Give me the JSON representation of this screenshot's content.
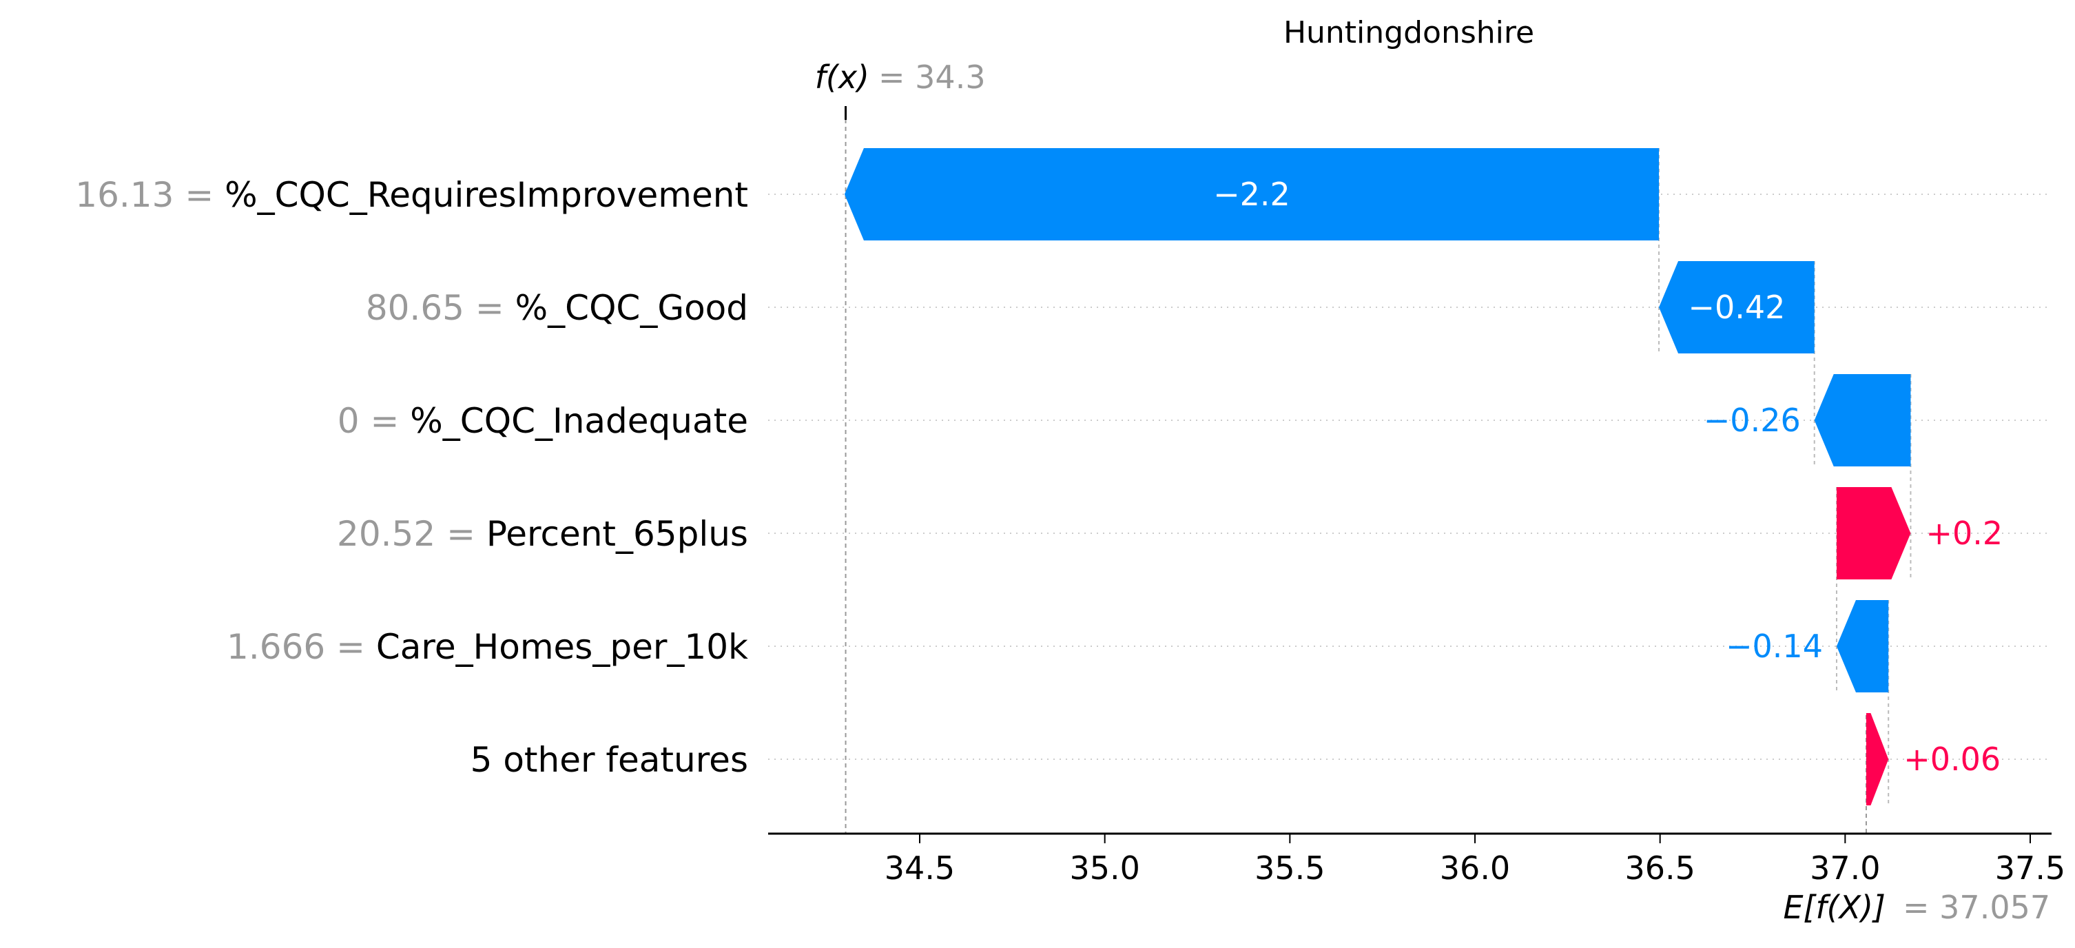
{
  "chart_data": {
    "type": "waterfall",
    "title": "Huntingdonshire",
    "xlim": [
      34.2,
      37.75
    ],
    "x_ticks": [
      "34.5",
      "35.0",
      "35.5",
      "36.0",
      "36.5",
      "37.0",
      "37.5"
    ],
    "output": {
      "label": "f(x)",
      "value_text": "= 34.3",
      "value": 34.3
    },
    "base": {
      "label": "E[f(X)]",
      "value_text": "= 37.057",
      "value": 37.057
    },
    "features": [
      {
        "value": "16.13",
        "name": "%_CQC_RequiresImprovement",
        "contribution": -2.2,
        "label": "−2.2"
      },
      {
        "value": "80.65",
        "name": "%_CQC_Good",
        "contribution": -0.42,
        "label": "−0.42"
      },
      {
        "value": "0",
        "name": "%_CQC_Inadequate",
        "contribution": -0.26,
        "label": "−0.26"
      },
      {
        "value": "20.52",
        "name": "Percent_65plus",
        "contribution": 0.2,
        "label": "+0.2"
      },
      {
        "value": "1.666",
        "name": "Care_Homes_per_10k",
        "contribution": -0.14,
        "label": "−0.14"
      },
      {
        "value": "",
        "name": "5 other features",
        "contribution": 0.06,
        "label": "+0.06"
      }
    ],
    "colors": {
      "negative": "#008bfb",
      "positive": "#ff0051",
      "value_text": "#999999",
      "grid": "#cccccc"
    },
    "grid": true
  }
}
